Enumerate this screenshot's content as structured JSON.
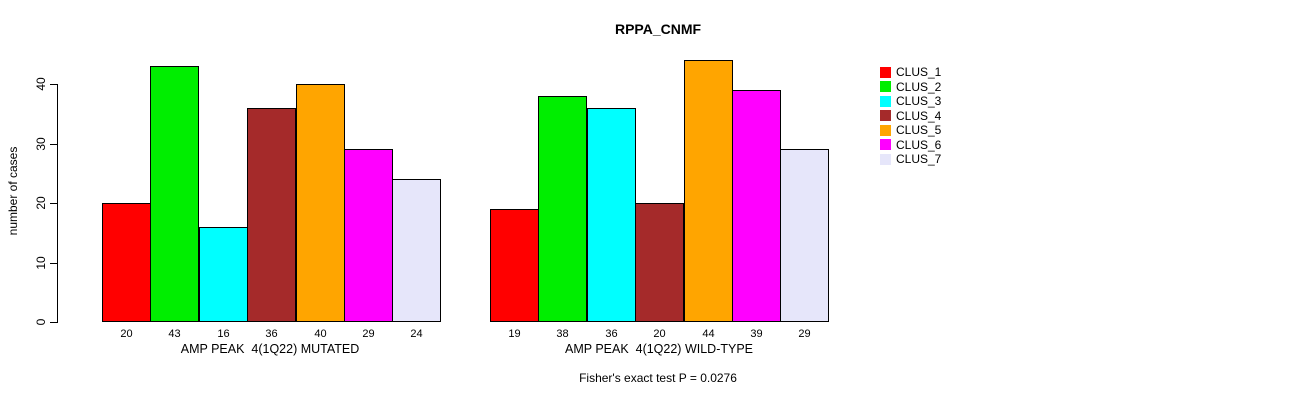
{
  "chart_data": {
    "type": "bar",
    "title": "RPPA_CNMF",
    "ylabel": "number of cases",
    "yticks": [
      0,
      10,
      20,
      30,
      40
    ],
    "ylim": [
      0,
      44
    ],
    "grid": false,
    "legend_position": "right",
    "categories": [
      "AMP PEAK  4(1Q22) MUTATED",
      "AMP PEAK  4(1Q22) WILD-TYPE"
    ],
    "series": [
      {
        "name": "CLUS_1",
        "color": "#FF0000",
        "values": [
          20,
          19
        ]
      },
      {
        "name": "CLUS_2",
        "color": "#00EE00",
        "values": [
          43,
          38
        ]
      },
      {
        "name": "CLUS_3",
        "color": "#00FFFF",
        "values": [
          16,
          36
        ]
      },
      {
        "name": "CLUS_4",
        "color": "#A52A2A",
        "values": [
          36,
          20
        ]
      },
      {
        "name": "CLUS_5",
        "color": "#FFA500",
        "values": [
          40,
          44
        ]
      },
      {
        "name": "CLUS_6",
        "color": "#FF00FF",
        "values": [
          29,
          39
        ]
      },
      {
        "name": "CLUS_7",
        "color": "#E6E6FA",
        "values": [
          24,
          29
        ]
      }
    ],
    "annotation": "Fisher's exact test P = 0.0276"
  }
}
